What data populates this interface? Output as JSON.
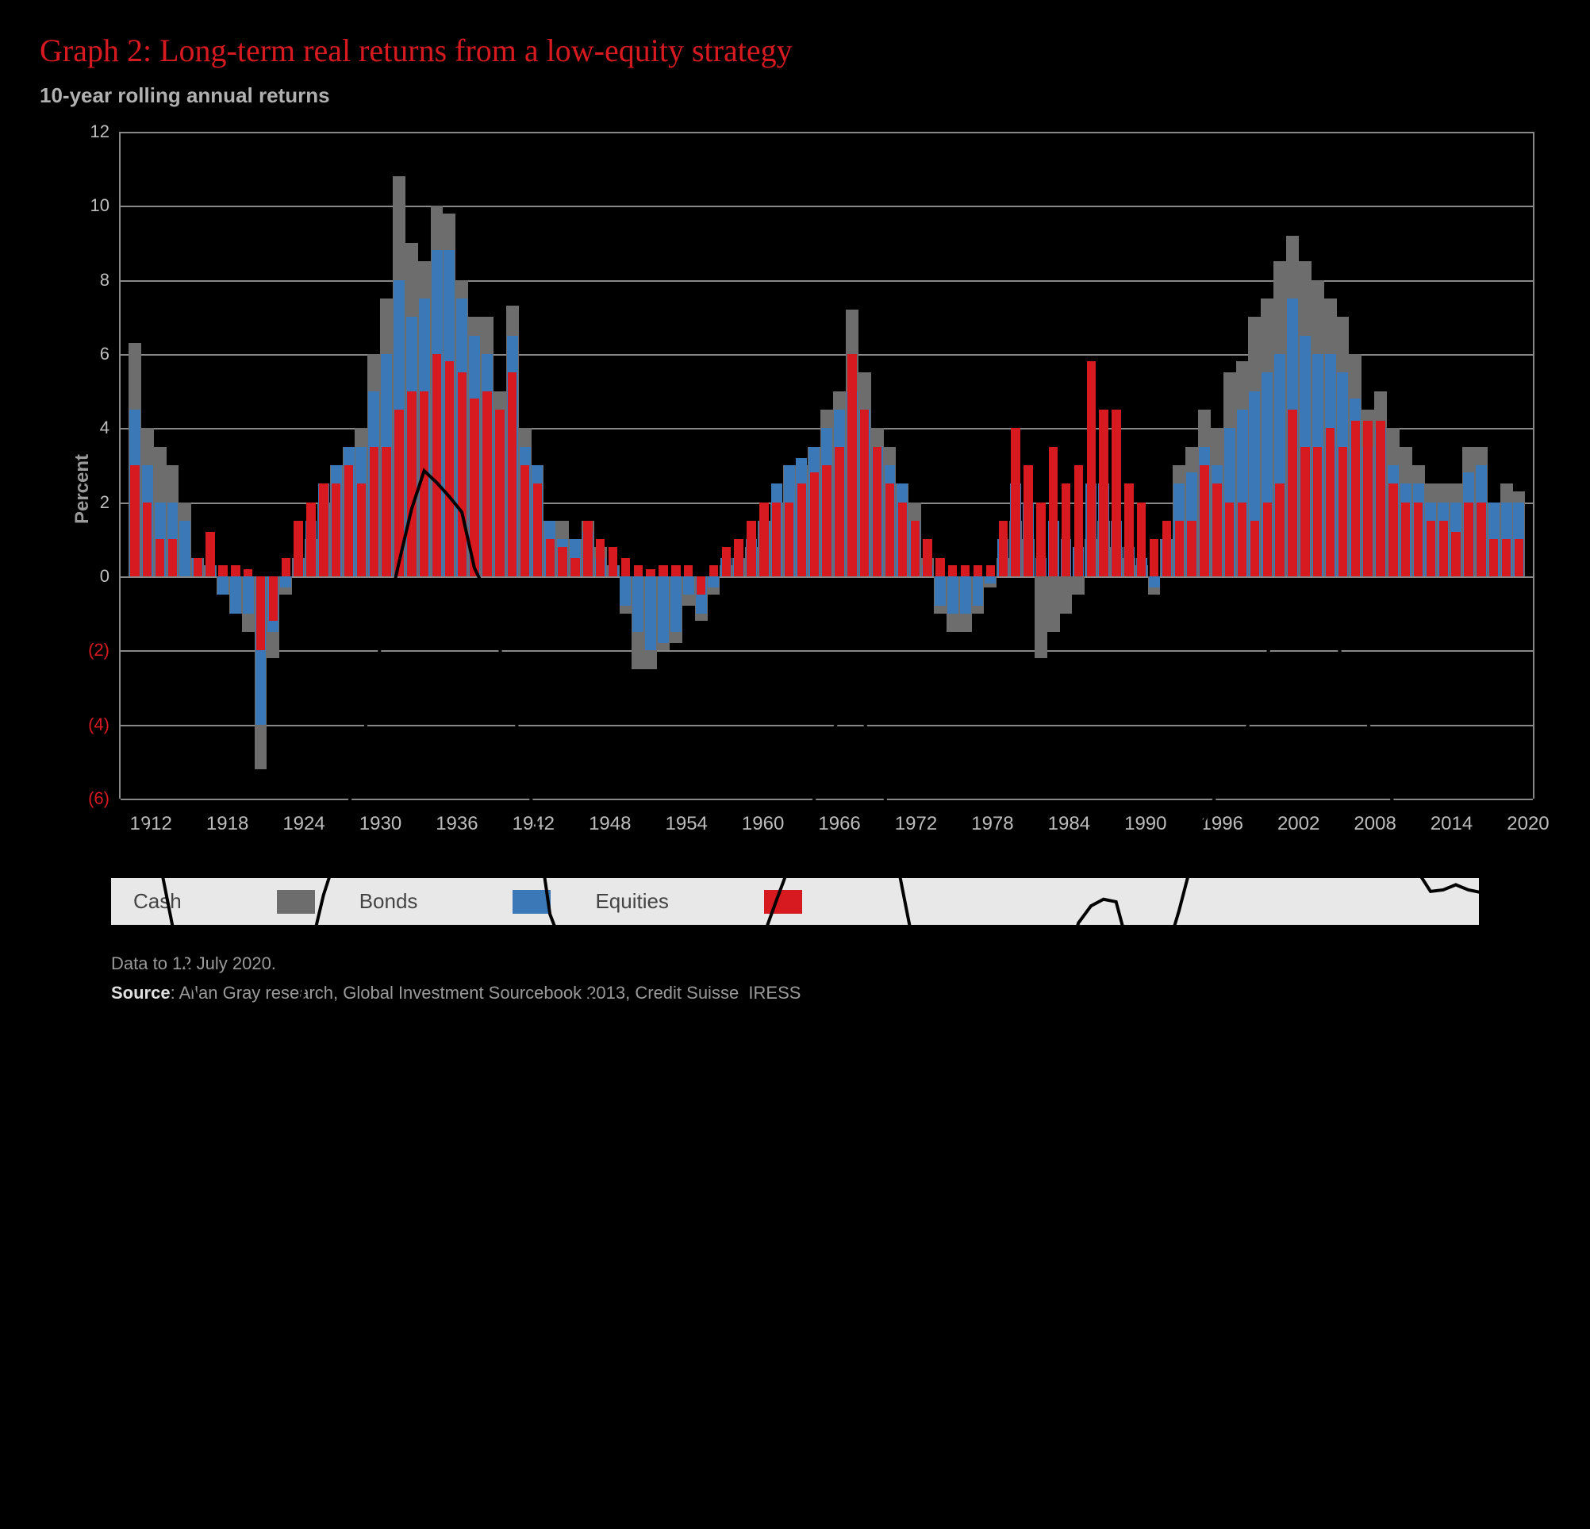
{
  "title": "Graph 2: Long-term real returns from a low-equity strategy",
  "subtitle": "10-year rolling annual returns",
  "ylabel": "Percent",
  "footnote_date": "Data to 12 July 2020.",
  "footnote_source_label": "Source",
  "footnote_source": ": Allan Gray research, Global Investment Sourcebook 2013, Credit Suisse, IRESS",
  "colors": {
    "background": "#000000",
    "title": "#d71920",
    "cash": "#6d6d6d",
    "bonds": "#3a78b8",
    "equities": "#d71920",
    "grid": "#888888",
    "axis_text": "#bdbdbd",
    "neg_axis_text": "#d71920",
    "legend_bg": "#e8e8e8",
    "trendline": "#000000"
  },
  "chart": {
    "type": "grouped-bar-with-line",
    "ymin": -6,
    "ymax": 12,
    "ytick_step": 2,
    "yticks": [
      12,
      10,
      8,
      6,
      4,
      2,
      0,
      -2,
      -4,
      -6
    ],
    "xticks": [
      1912,
      1918,
      1924,
      1930,
      1936,
      1942,
      1948,
      1954,
      1960,
      1966,
      1972,
      1978,
      1984,
      1990,
      1996,
      2002,
      2008,
      2014,
      2020
    ],
    "start_year": 1910,
    "end_year": 2020,
    "series": [
      {
        "name": "Cash",
        "color": "#6d6d6d"
      },
      {
        "name": "Bonds",
        "color": "#3a78b8"
      },
      {
        "name": "Equities",
        "color": "#d71920"
      }
    ],
    "data": [
      {
        "y": 1910,
        "cash": 6.3,
        "bonds": 4.5,
        "equities": 3.0
      },
      {
        "y": 1911,
        "cash": 4.0,
        "bonds": 3.0,
        "equities": 2.0
      },
      {
        "y": 1912,
        "cash": 3.5,
        "bonds": 2.0,
        "equities": 1.0
      },
      {
        "y": 1913,
        "cash": 3.0,
        "bonds": 2.0,
        "equities": 1.0
      },
      {
        "y": 1914,
        "cash": 2.0,
        "bonds": 1.5,
        "equities": 0.0
      },
      {
        "y": 1915,
        "cash": 0.5,
        "bonds": 0.5,
        "equities": 0.5
      },
      {
        "y": 1916,
        "cash": 0.3,
        "bonds": 0.3,
        "equities": 1.2
      },
      {
        "y": 1917,
        "cash": -0.5,
        "bonds": -0.5,
        "equities": 0.3
      },
      {
        "y": 1918,
        "cash": -1.0,
        "bonds": -1.0,
        "equities": 0.3
      },
      {
        "y": 1919,
        "cash": -1.5,
        "bonds": -1.0,
        "equities": 0.2
      },
      {
        "y": 1920,
        "cash": -5.2,
        "bonds": -4.0,
        "equities": -2.0
      },
      {
        "y": 1921,
        "cash": -2.2,
        "bonds": -1.5,
        "equities": -1.2
      },
      {
        "y": 1922,
        "cash": -0.5,
        "bonds": -0.3,
        "equities": 0.5
      },
      {
        "y": 1923,
        "cash": 0.5,
        "bonds": 0.5,
        "equities": 1.5
      },
      {
        "y": 1924,
        "cash": 1.0,
        "bonds": 1.5,
        "equities": 2.0
      },
      {
        "y": 1925,
        "cash": 2.0,
        "bonds": 2.5,
        "equities": 2.5
      },
      {
        "y": 1926,
        "cash": 3.0,
        "bonds": 3.0,
        "equities": 2.5
      },
      {
        "y": 1927,
        "cash": 3.5,
        "bonds": 3.5,
        "equities": 3.0
      },
      {
        "y": 1928,
        "cash": 4.0,
        "bonds": 3.5,
        "equities": 2.5
      },
      {
        "y": 1929,
        "cash": 6.0,
        "bonds": 5.0,
        "equities": 3.5
      },
      {
        "y": 1930,
        "cash": 7.5,
        "bonds": 6.0,
        "equities": 3.5
      },
      {
        "y": 1931,
        "cash": 10.8,
        "bonds": 8.0,
        "equities": 4.5
      },
      {
        "y": 1932,
        "cash": 9.0,
        "bonds": 7.0,
        "equities": 5.0
      },
      {
        "y": 1933,
        "cash": 8.5,
        "bonds": 7.5,
        "equities": 5.0
      },
      {
        "y": 1934,
        "cash": 10.0,
        "bonds": 8.8,
        "equities": 6.0
      },
      {
        "y": 1935,
        "cash": 9.8,
        "bonds": 8.8,
        "equities": 5.8
      },
      {
        "y": 1936,
        "cash": 8.0,
        "bonds": 7.5,
        "equities": 5.5
      },
      {
        "y": 1937,
        "cash": 7.0,
        "bonds": 6.5,
        "equities": 4.8
      },
      {
        "y": 1938,
        "cash": 7.0,
        "bonds": 6.0,
        "equities": 5.0
      },
      {
        "y": 1939,
        "cash": 5.0,
        "bonds": 4.5,
        "equities": 4.5
      },
      {
        "y": 1940,
        "cash": 7.3,
        "bonds": 6.5,
        "equities": 5.5
      },
      {
        "y": 1941,
        "cash": 4.0,
        "bonds": 3.5,
        "equities": 3.0
      },
      {
        "y": 1942,
        "cash": 3.0,
        "bonds": 3.0,
        "equities": 2.5
      },
      {
        "y": 1943,
        "cash": 1.5,
        "bonds": 1.5,
        "equities": 1.0
      },
      {
        "y": 1944,
        "cash": 1.5,
        "bonds": 1.0,
        "equities": 0.8
      },
      {
        "y": 1945,
        "cash": 1.0,
        "bonds": 1.0,
        "equities": 0.5
      },
      {
        "y": 1946,
        "cash": 1.5,
        "bonds": 1.2,
        "equities": 1.5
      },
      {
        "y": 1947,
        "cash": 0.8,
        "bonds": 0.5,
        "equities": 1.0
      },
      {
        "y": 1948,
        "cash": 0.3,
        "bonds": 0.3,
        "equities": 0.8
      },
      {
        "y": 1949,
        "cash": -1.0,
        "bonds": -0.8,
        "equities": 0.5
      },
      {
        "y": 1950,
        "cash": -2.5,
        "bonds": -1.5,
        "equities": 0.3
      },
      {
        "y": 1951,
        "cash": -2.5,
        "bonds": -2.0,
        "equities": 0.2
      },
      {
        "y": 1952,
        "cash": -2.0,
        "bonds": -1.8,
        "equities": 0.3
      },
      {
        "y": 1953,
        "cash": -1.8,
        "bonds": -1.5,
        "equities": 0.3
      },
      {
        "y": 1954,
        "cash": -0.8,
        "bonds": -0.5,
        "equities": 0.3
      },
      {
        "y": 1955,
        "cash": -1.2,
        "bonds": -1.0,
        "equities": -0.5
      },
      {
        "y": 1956,
        "cash": -0.5,
        "bonds": -0.3,
        "equities": 0.3
      },
      {
        "y": 1957,
        "cash": 0.3,
        "bonds": 0.5,
        "equities": 0.8
      },
      {
        "y": 1958,
        "cash": 0.5,
        "bonds": 0.5,
        "equities": 1.0
      },
      {
        "y": 1959,
        "cash": 0.8,
        "bonds": 1.0,
        "equities": 1.5
      },
      {
        "y": 1960,
        "cash": 1.5,
        "bonds": 1.5,
        "equities": 2.0
      },
      {
        "y": 1961,
        "cash": 2.0,
        "bonds": 2.5,
        "equities": 2.0
      },
      {
        "y": 1962,
        "cash": 3.0,
        "bonds": 3.0,
        "equities": 2.0
      },
      {
        "y": 1963,
        "cash": 3.0,
        "bonds": 3.2,
        "equities": 2.5
      },
      {
        "y": 1964,
        "cash": 3.5,
        "bonds": 3.5,
        "equities": 2.8
      },
      {
        "y": 1965,
        "cash": 4.5,
        "bonds": 4.0,
        "equities": 3.0
      },
      {
        "y": 1966,
        "cash": 5.0,
        "bonds": 4.5,
        "equities": 3.5
      },
      {
        "y": 1967,
        "cash": 7.2,
        "bonds": 5.0,
        "equities": 6.0
      },
      {
        "y": 1968,
        "cash": 5.5,
        "bonds": 4.5,
        "equities": 4.5
      },
      {
        "y": 1969,
        "cash": 4.0,
        "bonds": 3.5,
        "equities": 3.5
      },
      {
        "y": 1970,
        "cash": 3.5,
        "bonds": 3.0,
        "equities": 2.5
      },
      {
        "y": 1971,
        "cash": 2.5,
        "bonds": 2.5,
        "equities": 2.0
      },
      {
        "y": 1972,
        "cash": 2.0,
        "bonds": 1.5,
        "equities": 1.5
      },
      {
        "y": 1973,
        "cash": 0.5,
        "bonds": 0.3,
        "equities": 1.0
      },
      {
        "y": 1974,
        "cash": -1.0,
        "bonds": -0.8,
        "equities": 0.5
      },
      {
        "y": 1975,
        "cash": -1.5,
        "bonds": -1.0,
        "equities": 0.3
      },
      {
        "y": 1976,
        "cash": -1.5,
        "bonds": -1.0,
        "equities": 0.3
      },
      {
        "y": 1977,
        "cash": -1.0,
        "bonds": -0.8,
        "equities": 0.3
      },
      {
        "y": 1978,
        "cash": -0.3,
        "bonds": -0.2,
        "equities": 0.3
      },
      {
        "y": 1979,
        "cash": 0.5,
        "bonds": 1.0,
        "equities": 1.5
      },
      {
        "y": 1980,
        "cash": 1.5,
        "bonds": 2.5,
        "equities": 4.0
      },
      {
        "y": 1981,
        "cash": 1.0,
        "bonds": 2.0,
        "equities": 3.0
      },
      {
        "y": 1982,
        "cash": -2.2,
        "bonds": 0.5,
        "equities": 2.0
      },
      {
        "y": 1983,
        "cash": -1.5,
        "bonds": 1.5,
        "equities": 3.5
      },
      {
        "y": 1984,
        "cash": -1.0,
        "bonds": 1.0,
        "equities": 2.5
      },
      {
        "y": 1985,
        "cash": -0.5,
        "bonds": 0.8,
        "equities": 3.0
      },
      {
        "y": 1986,
        "cash": 1.0,
        "bonds": 2.5,
        "equities": 5.8
      },
      {
        "y": 1987,
        "cash": 1.5,
        "bonds": 2.5,
        "equities": 4.5
      },
      {
        "y": 1988,
        "cash": 0.8,
        "bonds": 1.5,
        "equities": 4.5
      },
      {
        "y": 1989,
        "cash": 0.5,
        "bonds": 0.8,
        "equities": 2.5
      },
      {
        "y": 1990,
        "cash": 0.3,
        "bonds": 0.5,
        "equities": 2.0
      },
      {
        "y": 1991,
        "cash": -0.5,
        "bonds": -0.3,
        "equities": 1.0
      },
      {
        "y": 1992,
        "cash": 1.0,
        "bonds": 1.0,
        "equities": 1.5
      },
      {
        "y": 1993,
        "cash": 3.0,
        "bonds": 2.5,
        "equities": 1.5
      },
      {
        "y": 1994,
        "cash": 3.5,
        "bonds": 2.8,
        "equities": 1.5
      },
      {
        "y": 1995,
        "cash": 4.5,
        "bonds": 3.5,
        "equities": 3.0
      },
      {
        "y": 1996,
        "cash": 4.0,
        "bonds": 3.0,
        "equities": 2.5
      },
      {
        "y": 1997,
        "cash": 5.5,
        "bonds": 4.0,
        "equities": 2.0
      },
      {
        "y": 1998,
        "cash": 5.8,
        "bonds": 4.5,
        "equities": 2.0
      },
      {
        "y": 1999,
        "cash": 7.0,
        "bonds": 5.0,
        "equities": 1.5
      },
      {
        "y": 2000,
        "cash": 7.5,
        "bonds": 5.5,
        "equities": 2.0
      },
      {
        "y": 2001,
        "cash": 8.5,
        "bonds": 6.0,
        "equities": 2.5
      },
      {
        "y": 2002,
        "cash": 9.2,
        "bonds": 7.5,
        "equities": 4.5
      },
      {
        "y": 2003,
        "cash": 8.5,
        "bonds": 6.5,
        "equities": 3.5
      },
      {
        "y": 2004,
        "cash": 8.0,
        "bonds": 6.0,
        "equities": 3.5
      },
      {
        "y": 2005,
        "cash": 7.5,
        "bonds": 6.0,
        "equities": 4.0
      },
      {
        "y": 2006,
        "cash": 7.0,
        "bonds": 5.5,
        "equities": 3.5
      },
      {
        "y": 2007,
        "cash": 6.0,
        "bonds": 4.8,
        "equities": 4.2
      },
      {
        "y": 2008,
        "cash": 4.5,
        "bonds": 3.5,
        "equities": 4.2
      },
      {
        "y": 2009,
        "cash": 5.0,
        "bonds": 4.0,
        "equities": 4.2
      },
      {
        "y": 2010,
        "cash": 4.0,
        "bonds": 3.0,
        "equities": 2.5
      },
      {
        "y": 2011,
        "cash": 3.5,
        "bonds": 2.5,
        "equities": 2.0
      },
      {
        "y": 2012,
        "cash": 3.0,
        "bonds": 2.5,
        "equities": 2.0
      },
      {
        "y": 2013,
        "cash": 2.5,
        "bonds": 2.0,
        "equities": 1.5
      },
      {
        "y": 2014,
        "cash": 2.5,
        "bonds": 2.0,
        "equities": 1.5
      },
      {
        "y": 2015,
        "cash": 2.5,
        "bonds": 2.0,
        "equities": 1.2
      },
      {
        "y": 2016,
        "cash": 3.5,
        "bonds": 2.8,
        "equities": 2.0
      },
      {
        "y": 2017,
        "cash": 3.5,
        "bonds": 3.0,
        "equities": 2.0
      },
      {
        "y": 2018,
        "cash": 2.0,
        "bonds": 2.0,
        "equities": 1.0
      },
      {
        "y": 2019,
        "cash": 2.5,
        "bonds": 2.0,
        "equities": 1.0
      },
      {
        "y": 2020,
        "cash": 2.3,
        "bonds": 2.0,
        "equities": 1.0
      }
    ]
  },
  "legend": [
    {
      "label": "Cash",
      "color": "#6d6d6d"
    },
    {
      "label": "Bonds",
      "color": "#3a78b8"
    },
    {
      "label": "Equities",
      "color": "#d71920"
    }
  ]
}
